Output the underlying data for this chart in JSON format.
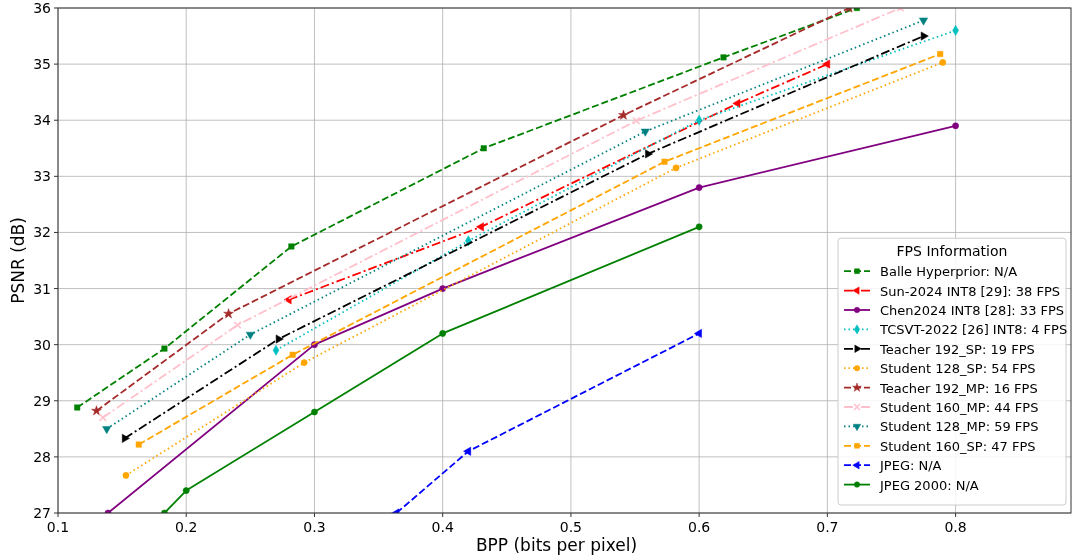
{
  "chart_data": {
    "type": "line",
    "xlabel": "BPP (bits per pixel)",
    "ylabel": "PSNR (dB)",
    "legend_title": "FPS Information",
    "xlim": [
      0.1,
      0.89
    ],
    "xticks": [
      0.1,
      0.2,
      0.3,
      0.4,
      0.5,
      0.6,
      0.7,
      0.8
    ],
    "ylim": [
      27,
      36
    ],
    "yticks": [
      27,
      28,
      29,
      30,
      31,
      32,
      33,
      34,
      35,
      36
    ],
    "grid": true,
    "legend": "bottom right",
    "series": [
      {
        "name": "Balle Hyperprior: N/A",
        "color": "#008000",
        "line_style": "dashed",
        "marker": "square",
        "x": [
          0.115,
          0.183,
          0.282,
          0.432,
          0.619,
          0.723
        ],
        "values": [
          28.88,
          29.93,
          31.75,
          33.5,
          35.12,
          36
        ]
      },
      {
        "name": "Sun-2024 INT8 [29]: 38 FPS",
        "color": "#ff0000",
        "line_style": "dashdot",
        "marker": "triangle-left",
        "x": [
          0.28,
          0.43,
          0.63,
          0.7
        ],
        "values": [
          30.8,
          32.1,
          34.3,
          35.0
        ]
      },
      {
        "name": "Chen2024 INT8 [28]: 33 FPS",
        "color": "#800080",
        "line_style": "solid",
        "marker": "circle",
        "x": [
          0.139,
          0.3,
          0.4,
          0.6,
          0.8
        ],
        "values": [
          27,
          30.0,
          31.0,
          32.8,
          33.9
        ]
      },
      {
        "name": "TCSVT-2022 [26] INT8: 4 FPS",
        "color": "#00bfbf",
        "line_style": "dotted",
        "marker": "diamond",
        "x": [
          0.27,
          0.42,
          0.6,
          0.8
        ],
        "values": [
          29.9,
          31.85,
          34.0,
          35.6
        ]
      },
      {
        "name": "Teacher 192_SP: 19 FPS",
        "color": "#000000",
        "line_style": "dashdot",
        "marker": "triangle-right",
        "x": [
          0.152,
          0.272,
          0.56,
          0.775
        ],
        "values": [
          28.33,
          30.1,
          33.4,
          35.5
        ]
      },
      {
        "name": "Student 128_SP: 54 FPS",
        "color": "#ffa500",
        "line_style": "dotted",
        "marker": "circle",
        "x": [
          0.153,
          0.292,
          0.582,
          0.79
        ],
        "values": [
          27.67,
          29.68,
          33.15,
          35.03
        ]
      },
      {
        "name": "Teacher 192_MP: 16 FPS",
        "color": "#a52a2a",
        "line_style": "dashed",
        "marker": "star",
        "x": [
          0.13,
          0.233,
          0.541,
          0.717
        ],
        "values": [
          28.82,
          30.55,
          34.09,
          36
        ]
      },
      {
        "name": "Student 160_MP: 44 FPS",
        "color": "#ffc0cb",
        "line_style": "dashdot",
        "marker": "cross",
        "x": [
          0.135,
          0.24,
          0.551,
          0.757
        ],
        "values": [
          28.7,
          30.35,
          33.99,
          36
        ]
      },
      {
        "name": "Student 128_MP: 59 FPS",
        "color": "#008080",
        "line_style": "dotted",
        "marker": "triangle-down",
        "x": [
          0.138,
          0.25,
          0.558,
          0.775
        ],
        "values": [
          28.5,
          30.18,
          33.8,
          35.78
        ]
      },
      {
        "name": "Student 160_SP: 47 FPS",
        "color": "#ffa500",
        "line_style": "dashed",
        "marker": "square",
        "x": [
          0.163,
          0.283,
          0.573,
          0.788
        ],
        "values": [
          28.22,
          29.82,
          33.26,
          35.18
        ]
      },
      {
        "name": "JPEG: N/A",
        "color": "#0000ff",
        "line_style": "dashed",
        "marker": "triangle-left",
        "x": [
          0.364,
          0.42,
          0.6
        ],
        "values": [
          27,
          28.1,
          30.2
        ]
      },
      {
        "name": "JPEG 2000: N/A",
        "color": "#008000",
        "line_style": "solid",
        "marker": "circle",
        "x": [
          0.183,
          0.2,
          0.3,
          0.4,
          0.6
        ],
        "values": [
          27,
          27.4,
          28.8,
          30.2,
          32.1
        ]
      }
    ]
  }
}
